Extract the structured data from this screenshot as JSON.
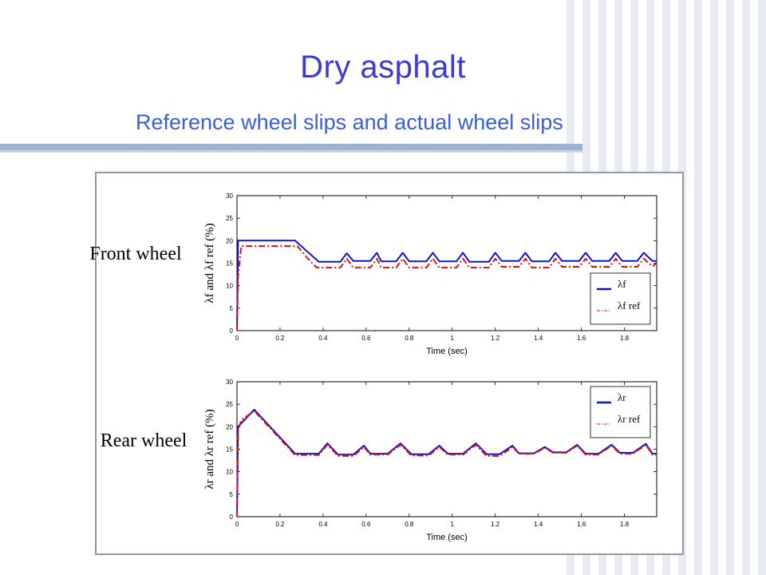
{
  "slide": {
    "title": "Dry asphalt",
    "subtitle": "Reference wheel slips and actual wheel slips"
  },
  "colors": {
    "title": "#3a3ad6",
    "actual": "#0a14c8",
    "reference": "#e01010"
  },
  "chart_data": [
    {
      "type": "line",
      "side_label": "Front wheel",
      "xlabel": "Time (sec)",
      "ylabel": "λf and λf ref (%)",
      "xlim": [
        0,
        1.95
      ],
      "ylim": [
        0,
        30
      ],
      "xticks": [
        0,
        0.2,
        0.4,
        0.6,
        0.8,
        1,
        1.2,
        1.4,
        1.6,
        1.8
      ],
      "yticks": [
        0,
        5,
        10,
        15,
        20,
        25,
        30
      ],
      "legend_position": "bottom-right",
      "series": [
        {
          "name": "λf",
          "style": "solid",
          "x": [
            0,
            0.005,
            0.27,
            0.38,
            0.48,
            0.51,
            0.54,
            0.62,
            0.65,
            0.67,
            0.74,
            0.77,
            0.8,
            0.88,
            0.91,
            0.94,
            1.02,
            1.05,
            1.08,
            1.17,
            1.2,
            1.23,
            1.31,
            1.34,
            1.37,
            1.45,
            1.48,
            1.51,
            1.59,
            1.62,
            1.65,
            1.73,
            1.76,
            1.79,
            1.86,
            1.89,
            1.93,
            1.95
          ],
          "y": [
            0,
            20,
            20,
            15.3,
            15.3,
            17.2,
            15.5,
            15.5,
            17.3,
            15.4,
            15.4,
            17.3,
            15.4,
            15.4,
            17.3,
            15.4,
            15.4,
            17.3,
            15.3,
            15.3,
            17.3,
            15.5,
            15.5,
            17.3,
            15.4,
            15.4,
            17.3,
            15.5,
            15.5,
            17.3,
            15.5,
            15.5,
            17.3,
            15.5,
            15.5,
            17.3,
            15.5,
            15.5
          ]
        },
        {
          "name": "λf ref",
          "style": "dash-dot",
          "x": [
            0,
            0.005,
            0.02,
            0.28,
            0.33,
            0.37,
            0.48,
            0.51,
            0.54,
            0.62,
            0.65,
            0.67,
            0.74,
            0.77,
            0.8,
            0.88,
            0.91,
            0.94,
            1.02,
            1.05,
            1.08,
            1.17,
            1.2,
            1.23,
            1.31,
            1.34,
            1.37,
            1.45,
            1.48,
            1.51,
            1.59,
            1.62,
            1.65,
            1.73,
            1.76,
            1.79,
            1.86,
            1.89,
            1.93,
            1.95
          ],
          "y": [
            0,
            12,
            18.8,
            18.8,
            16,
            14,
            14,
            16,
            14,
            14,
            16,
            14,
            14,
            16,
            14,
            14,
            16,
            14,
            14,
            16,
            14,
            14,
            16,
            14.2,
            14.2,
            16,
            14,
            14,
            16,
            14.2,
            14.2,
            16,
            14.2,
            14.2,
            16,
            14.2,
            14.2,
            16,
            14.3,
            15
          ]
        }
      ]
    },
    {
      "type": "line",
      "side_label": "Rear wheel",
      "xlabel": "Time (sec)",
      "ylabel": "λr and λr ref (%)",
      "xlim": [
        0,
        1.95
      ],
      "ylim": [
        0,
        30
      ],
      "xticks": [
        0,
        0.2,
        0.4,
        0.6,
        0.8,
        1,
        1.2,
        1.4,
        1.6,
        1.8
      ],
      "yticks": [
        0,
        5,
        10,
        15,
        20,
        25,
        30
      ],
      "legend_position": "top-right",
      "series": [
        {
          "name": "λr",
          "style": "solid",
          "x": [
            0,
            0.005,
            0.08,
            0.27,
            0.38,
            0.42,
            0.47,
            0.54,
            0.59,
            0.62,
            0.7,
            0.76,
            0.81,
            0.89,
            0.94,
            0.98,
            1.05,
            1.11,
            1.16,
            1.22,
            1.28,
            1.31,
            1.38,
            1.43,
            1.47,
            1.53,
            1.58,
            1.62,
            1.68,
            1.74,
            1.78,
            1.84,
            1.9,
            1.93,
            1.95
          ],
          "y": [
            0,
            20,
            23.8,
            14,
            14,
            16.3,
            13.8,
            13.8,
            15.8,
            14,
            14,
            16.3,
            13.9,
            13.9,
            15.8,
            14,
            14,
            16.3,
            13.9,
            13.9,
            15.8,
            14.1,
            14.1,
            15.5,
            14.3,
            14.3,
            16,
            14,
            14,
            16,
            14.2,
            14.2,
            16.2,
            14,
            14
          ]
        },
        {
          "name": "λr ref",
          "style": "dash-dot",
          "x": [
            0,
            0.005,
            0.02,
            0.08,
            0.27,
            0.38,
            0.42,
            0.47,
            0.54,
            0.59,
            0.62,
            0.7,
            0.76,
            0.81,
            0.89,
            0.94,
            0.98,
            1.05,
            1.11,
            1.16,
            1.22,
            1.28,
            1.31,
            1.38,
            1.43,
            1.47,
            1.53,
            1.58,
            1.62,
            1.68,
            1.74,
            1.78,
            1.84,
            1.9,
            1.93,
            1.95
          ],
          "y": [
            0,
            19,
            21.5,
            23.5,
            13.7,
            13.7,
            16,
            13.5,
            13.5,
            15.5,
            13.8,
            13.8,
            16,
            13.6,
            13.6,
            15.5,
            13.8,
            13.8,
            16,
            13.5,
            13.5,
            15.5,
            14,
            14,
            15.3,
            14.2,
            14.2,
            15.8,
            13.8,
            13.8,
            15.8,
            14,
            14,
            16,
            13.8,
            13.8
          ]
        }
      ]
    }
  ]
}
